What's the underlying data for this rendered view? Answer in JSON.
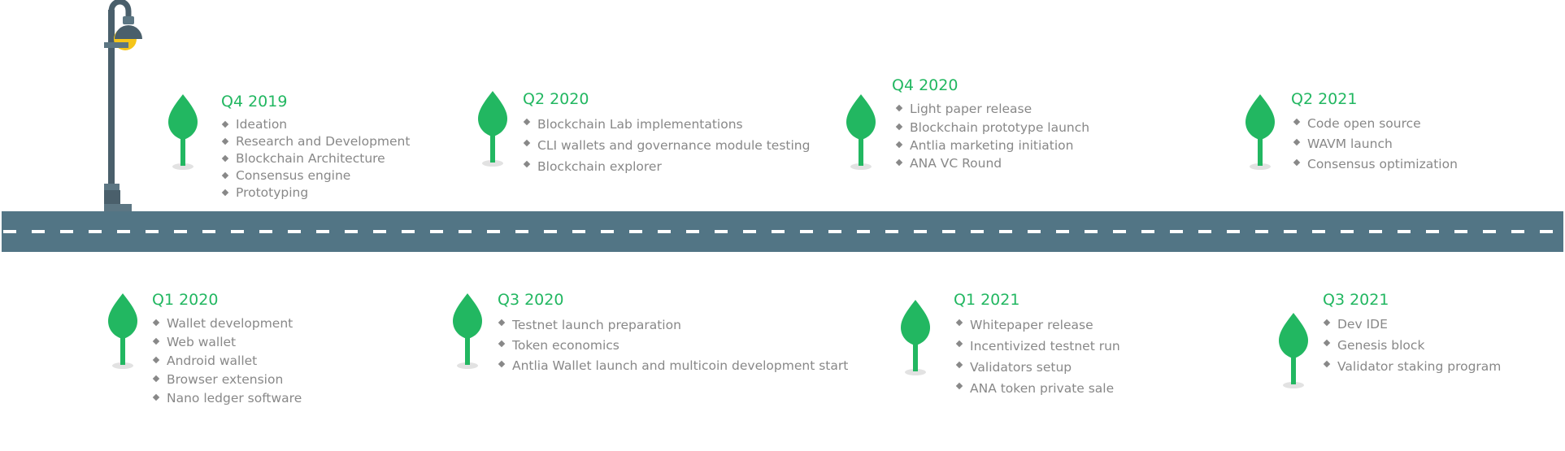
{
  "colors": {
    "road": "#527585",
    "road_dash": "#ffffff",
    "accent_green": "#22b761",
    "text_gray": "#888888",
    "lamp_dark": "#4a5f6b",
    "lamp_light": "#f5c518"
  },
  "icons": {
    "tree": "leaf-tree-icon",
    "lamp": "street-lamp-icon",
    "bullet": "diamond-bullet-icon"
  },
  "milestones": [
    {
      "id": "q4-2019",
      "title": "Q4 2019",
      "items": [
        "Ideation",
        "Research and Development",
        "Blockchain Architecture",
        "Consensus engine",
        "Prototyping"
      ]
    },
    {
      "id": "q2-2020",
      "title": "Q2 2020",
      "items": [
        "Blockchain Lab implementations",
        "CLI wallets and governance module testing",
        "Blockchain explorer"
      ]
    },
    {
      "id": "q4-2020",
      "title": "Q4 2020",
      "items": [
        "Light paper release",
        "Blockchain prototype launch",
        "Antlia marketing initiation",
        "ANA VC Round"
      ]
    },
    {
      "id": "q2-2021",
      "title": "Q2 2021",
      "items": [
        "Code open source",
        "WAVM launch",
        "Consensus optimization"
      ]
    },
    {
      "id": "q1-2020",
      "title": "Q1 2020",
      "items": [
        "Wallet development",
        "Web wallet",
        "Android wallet",
        "Browser extension",
        "Nano ledger software"
      ]
    },
    {
      "id": "q3-2020",
      "title": "Q3 2020",
      "items": [
        "Testnet launch preparation",
        "Token economics",
        "Antlia Wallet launch and multicoin development start"
      ]
    },
    {
      "id": "q1-2021",
      "title": "Q1 2021",
      "items": [
        "Whitepaper release",
        "Incentivized testnet run",
        "Validators setup",
        "ANA token private sale"
      ]
    },
    {
      "id": "q3-2021",
      "title": "Q3 2021",
      "items": [
        "Dev IDE",
        "Genesis block",
        "Validator staking program"
      ]
    }
  ]
}
